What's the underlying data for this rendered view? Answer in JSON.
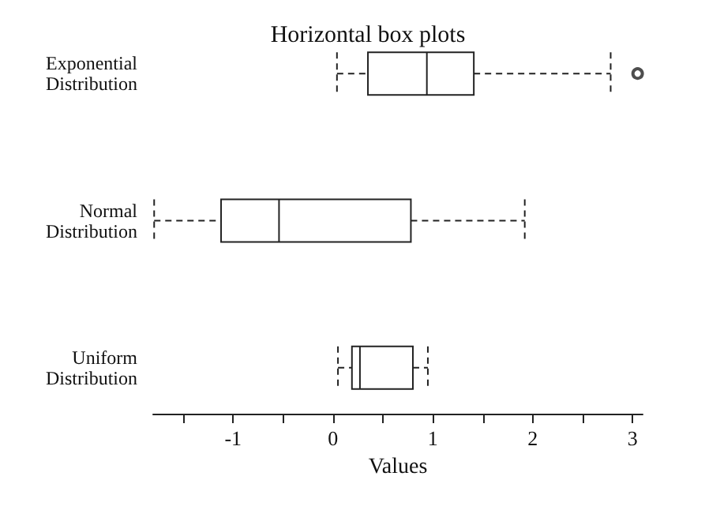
{
  "chart_data": {
    "type": "box",
    "orientation": "horizontal",
    "title": "Horizontal box plots",
    "xlabel": "Values",
    "categories": [
      "Exponential\nDistribution",
      "Normal\nDistribution",
      "Uniform\nDistribution"
    ],
    "boxes": [
      {
        "low": 0.04,
        "q1": 0.35,
        "median": 0.94,
        "q3": 1.41,
        "high": 2.78,
        "outliers": [
          3.05
        ]
      },
      {
        "low": -1.79,
        "q1": -1.12,
        "median": -0.54,
        "q3": 0.78,
        "high": 1.92
      },
      {
        "low": 0.05,
        "q1": 0.19,
        "median": 0.27,
        "q3": 0.8,
        "high": 0.95
      }
    ],
    "xlim": [
      -1.8,
      3.1
    ],
    "xticks": [
      {
        "value": -1.5,
        "label": null
      },
      -1,
      {
        "value": -0.5,
        "label": null
      },
      0,
      {
        "value": 0.5,
        "label": null
      },
      1,
      {
        "value": 1.5,
        "label": null
      },
      2,
      {
        "value": 2.5,
        "label": null
      },
      3
    ],
    "grid": false
  }
}
